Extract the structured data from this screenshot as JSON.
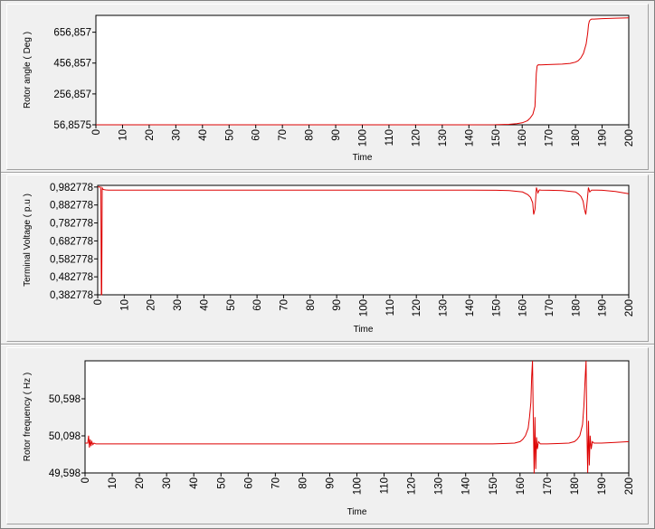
{
  "colors": {
    "series": "#dd0000",
    "plot_background": "#ffffff",
    "panel_background": "#f0f0f0"
  },
  "chart_data": [
    {
      "type": "line",
      "xlabel": "Time",
      "ylabel": "Rotor angle ( Deg )",
      "xlim": [
        0,
        200
      ],
      "ylim": [
        56.8575,
        766.0
      ],
      "xticks": [
        "0",
        "10",
        "20",
        "30",
        "40",
        "50",
        "60",
        "70",
        "80",
        "90",
        "100",
        "110",
        "120",
        "130",
        "140",
        "150",
        "160",
        "170",
        "180",
        "190",
        "200"
      ],
      "yticks": [
        {
          "label": "56,8575",
          "value": 56.8575
        },
        {
          "label": "256,857",
          "value": 256.857
        },
        {
          "label": "456,857",
          "value": 456.857
        },
        {
          "label": "656,857",
          "value": 656.857
        }
      ],
      "grid": false,
      "series": [
        {
          "x": [
            0,
            140,
            150,
            155,
            158,
            160,
            161,
            162,
            163,
            164,
            164.8,
            165,
            165.3,
            165.6,
            166,
            167,
            170,
            175,
            178,
            180,
            181,
            182,
            183,
            184,
            184.6,
            184.9,
            185.2,
            185.5,
            186,
            187,
            190,
            195,
            200
          ],
          "y": [
            56.86,
            56.9,
            57.5,
            60,
            64,
            70,
            76,
            84,
            100,
            125,
            175,
            260,
            390,
            438,
            446,
            445,
            447,
            450,
            455,
            463,
            472,
            490,
            520,
            580,
            650,
            705,
            728,
            736,
            742,
            742,
            745,
            748,
            750
          ]
        }
      ]
    },
    {
      "type": "line",
      "xlabel": "Time",
      "ylabel": "Terminal Voltage ( p.u )",
      "xlim": [
        0,
        200
      ],
      "ylim": [
        0.382778,
        0.992
      ],
      "xticks": [
        "0",
        "10",
        "20",
        "30",
        "40",
        "50",
        "60",
        "70",
        "80",
        "90",
        "100",
        "110",
        "120",
        "130",
        "140",
        "150",
        "160",
        "170",
        "180",
        "190",
        "200"
      ],
      "yticks": [
        {
          "label": "0,382778",
          "value": 0.382778
        },
        {
          "label": "0,482778",
          "value": 0.482778
        },
        {
          "label": "0,582778",
          "value": 0.582778
        },
        {
          "label": "0,682778",
          "value": 0.682778
        },
        {
          "label": "0,782778",
          "value": 0.782778
        },
        {
          "label": "0,882778",
          "value": 0.882778
        },
        {
          "label": "0,982778",
          "value": 0.982778
        }
      ],
      "grid": false,
      "series": [
        {
          "x": [
            0,
            0.5,
            1.0,
            1.2,
            1.35,
            1.5,
            1.7,
            2.0,
            2.5,
            3,
            4,
            6,
            10,
            50,
            100,
            140,
            150,
            155,
            160,
            162,
            163,
            163.8,
            164.2,
            164.7,
            165.2,
            165.8,
            166.3,
            167,
            170,
            175,
            180,
            181,
            182,
            182.8,
            183.3,
            183.8,
            184.2,
            184.8,
            185.3,
            186,
            188,
            190,
            195,
            200
          ],
          "y": [
            0.9828,
            0.9828,
            0.9828,
            0.97,
            0.383,
            0.383,
            0.978,
            0.97,
            0.968,
            0.967,
            0.966,
            0.966,
            0.966,
            0.966,
            0.966,
            0.966,
            0.965,
            0.963,
            0.955,
            0.94,
            0.925,
            0.895,
            0.83,
            0.86,
            0.98,
            0.95,
            0.967,
            0.966,
            0.965,
            0.963,
            0.955,
            0.945,
            0.93,
            0.905,
            0.86,
            0.83,
            0.88,
            0.98,
            0.955,
            0.966,
            0.966,
            0.965,
            0.958,
            0.945
          ]
        }
      ]
    },
    {
      "type": "line",
      "xlabel": "Time",
      "ylabel": "Rotor frequency ( Hz )",
      "xlim": [
        0,
        200
      ],
      "ylim": [
        49.598,
        51.11
      ],
      "xticks": [
        "0",
        "10",
        "20",
        "30",
        "40",
        "50",
        "60",
        "70",
        "80",
        "90",
        "100",
        "110",
        "120",
        "130",
        "140",
        "150",
        "160",
        "170",
        "180",
        "190",
        "200"
      ],
      "yticks": [
        {
          "label": "49,598",
          "value": 49.598
        },
        {
          "label": "50,098",
          "value": 50.098
        },
        {
          "label": "50,598",
          "value": 50.598
        }
      ],
      "grid": false,
      "series": [
        {
          "x": [
            0,
            1.0,
            1.3,
            1.6,
            1.9,
            2.2,
            2.5,
            2.9,
            3.3,
            4,
            6,
            50,
            100,
            150,
            155,
            158,
            160,
            161,
            162,
            163,
            163.5,
            164,
            164.3,
            164.6,
            164.9,
            165.2,
            165.5,
            165.8,
            166.1,
            166.4,
            166.8,
            167.5,
            170,
            175,
            178,
            180,
            181,
            182,
            183,
            183.5,
            184,
            184.3,
            184.6,
            184.9,
            185.2,
            185.5,
            185.8,
            186.2,
            186.6,
            187.2,
            190,
            195,
            200
          ],
          "y": [
            50.0,
            50.0,
            50.1,
            49.94,
            50.05,
            49.96,
            50.02,
            49.98,
            50.0,
            49.99,
            49.99,
            49.99,
            49.99,
            49.99,
            49.995,
            50.0,
            50.02,
            50.05,
            50.1,
            50.2,
            50.35,
            50.55,
            50.9,
            51.11,
            50.3,
            49.59,
            50.35,
            49.65,
            50.08,
            49.92,
            50.02,
            49.99,
            49.99,
            49.995,
            50.0,
            50.02,
            50.05,
            50.1,
            50.25,
            50.5,
            50.9,
            51.11,
            50.2,
            49.6,
            50.3,
            49.7,
            50.1,
            49.92,
            50.02,
            50.0,
            50.0,
            50.01,
            50.02
          ]
        }
      ]
    }
  ]
}
